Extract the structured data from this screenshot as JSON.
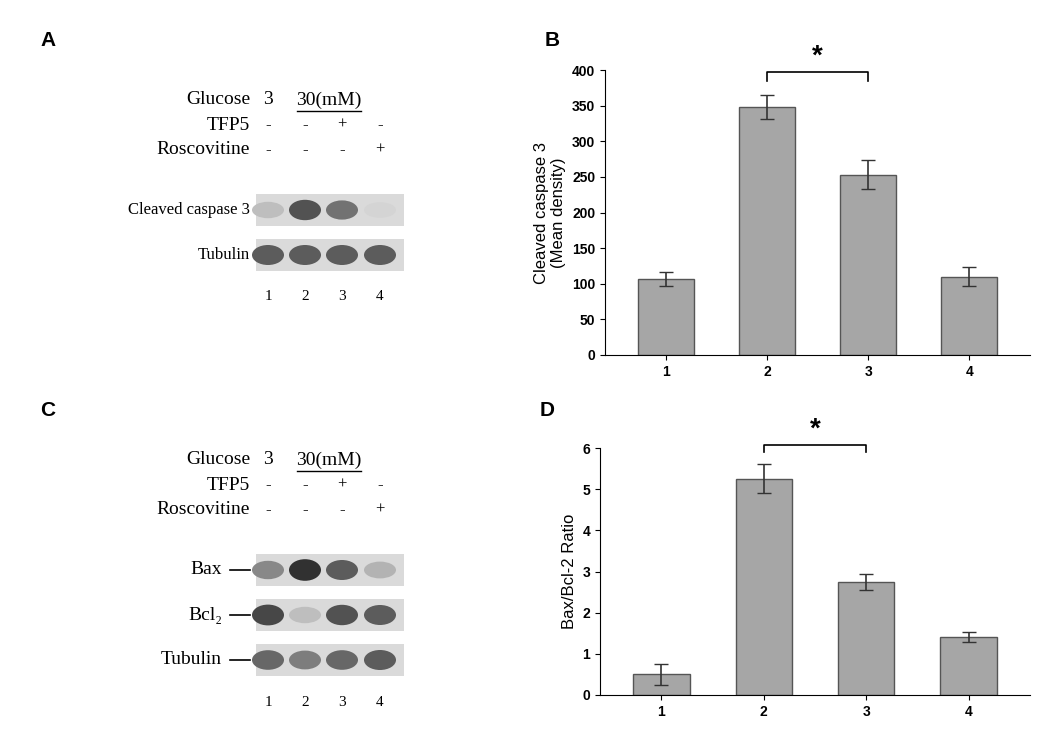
{
  "panel_labels": [
    "A",
    "B",
    "C",
    "D"
  ],
  "blots": [
    {
      "conditions": {
        "label": "Glucose",
        "groups": [
          {
            "text": "3",
            "lanes": [
              1
            ]
          },
          {
            "text": "30(mM)",
            "lanes": [
              2,
              3,
              4
            ]
          }
        ]
      },
      "treatments": [
        {
          "name": "TFP5",
          "signs": [
            "-",
            "-",
            "+",
            "-"
          ]
        },
        {
          "name": "Roscovitine",
          "signs": [
            "-",
            "-",
            "-",
            "+"
          ]
        }
      ],
      "rows": [
        {
          "name": "Cleaved caspase 3",
          "band_density": [
            0.3,
            0.8,
            0.65,
            0.2
          ]
        },
        {
          "name": "Tubulin",
          "band_density": [
            0.75,
            0.75,
            0.75,
            0.75
          ]
        }
      ],
      "lanes": [
        "1",
        "2",
        "3",
        "4"
      ]
    },
    {
      "conditions": {
        "label": "Glucose",
        "groups": [
          {
            "text": "3",
            "lanes": [
              1
            ]
          },
          {
            "text": "30(mM)",
            "lanes": [
              2,
              3,
              4
            ]
          }
        ]
      },
      "treatments": [
        {
          "name": "TFP5",
          "signs": [
            "-",
            "-",
            "+",
            "-"
          ]
        },
        {
          "name": "Roscovitine",
          "signs": [
            "-",
            "-",
            "-",
            "+"
          ]
        }
      ],
      "rows": [
        {
          "name": "Bax",
          "band_density": [
            0.55,
            0.95,
            0.75,
            0.35
          ]
        },
        {
          "name": "Bcl₂",
          "band_density": [
            0.85,
            0.3,
            0.8,
            0.75
          ]
        },
        {
          "name": "Tubulin",
          "band_density": [
            0.7,
            0.6,
            0.7,
            0.75
          ]
        }
      ],
      "lanes": [
        "1",
        "2",
        "3",
        "4"
      ],
      "marker": "dash"
    }
  ],
  "chart_data": [
    {
      "type": "bar",
      "categories": [
        "1",
        "2",
        "3",
        "4"
      ],
      "values": [
        107,
        348,
        253,
        110
      ],
      "error": [
        10,
        17,
        20,
        13
      ],
      "ylabel": "Cleaved caspase 3\n(Mean density)",
      "color": "#a6a6a6",
      "ylim": [
        0,
        400
      ],
      "yticks": [
        0,
        50,
        100,
        150,
        200,
        250,
        300,
        350,
        400
      ],
      "significance": {
        "between": [
          "2",
          "3"
        ],
        "label": "*"
      }
    },
    {
      "type": "bar",
      "categories": [
        "1",
        "2",
        "3",
        "4"
      ],
      "values": [
        0.5,
        5.25,
        2.75,
        1.4
      ],
      "error": [
        0.25,
        0.35,
        0.2,
        0.12
      ],
      "ylabel": "Bax/Bcl-2 Ratio",
      "color": "#a6a6a6",
      "ylim": [
        0,
        6
      ],
      "yticks": [
        0,
        1,
        2,
        3,
        4,
        5,
        6
      ],
      "significance": {
        "between": [
          "2",
          "3"
        ],
        "label": "*"
      }
    }
  ]
}
